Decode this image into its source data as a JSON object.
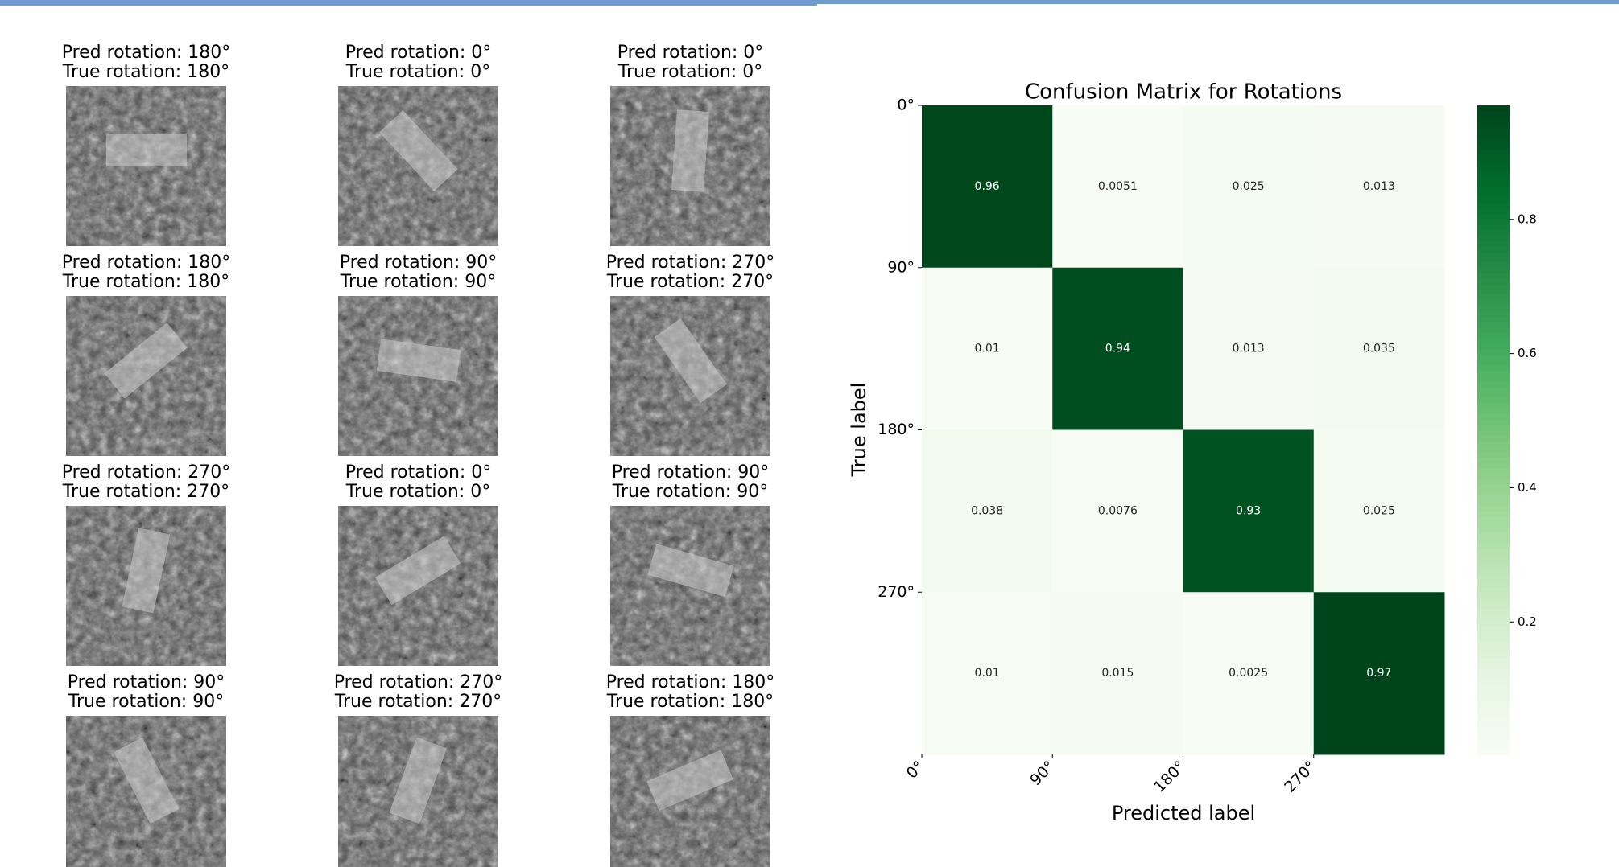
{
  "panels": [
    {
      "pred": "Pred rotation: 180°",
      "true": "True rotation: 180°"
    },
    {
      "pred": "Pred rotation: 0°",
      "true": "True rotation: 0°"
    },
    {
      "pred": "Pred rotation: 0°",
      "true": "True rotation: 0°"
    },
    {
      "pred": "Pred rotation: 180°",
      "true": "True rotation: 180°"
    },
    {
      "pred": "Pred rotation: 90°",
      "true": "True rotation: 90°"
    },
    {
      "pred": "Pred rotation: 270°",
      "true": "True rotation: 270°"
    },
    {
      "pred": "Pred rotation: 270°",
      "true": "True rotation: 270°"
    },
    {
      "pred": "Pred rotation: 0°",
      "true": "True rotation: 0°"
    },
    {
      "pred": "Pred rotation: 90°",
      "true": "True rotation: 90°"
    },
    {
      "pred": "Pred rotation: 90°",
      "true": "True rotation: 90°"
    },
    {
      "pred": "Pred rotation: 270°",
      "true": "True rotation: 270°"
    },
    {
      "pred": "Pred rotation: 180°",
      "true": "True rotation: 180°"
    }
  ],
  "chart_data": {
    "type": "heatmap",
    "title": "Confusion Matrix for Rotations",
    "x_label": "Predicted label",
    "y_label": "True label",
    "x_categories": [
      "0°",
      "90°",
      "180°",
      "270°"
    ],
    "y_categories": [
      "0°",
      "90°",
      "180°",
      "270°"
    ],
    "values": [
      [
        0.96,
        0.0051,
        0.025,
        0.013
      ],
      [
        0.01,
        0.94,
        0.013,
        0.035
      ],
      [
        0.038,
        0.0076,
        0.93,
        0.025
      ],
      [
        0.01,
        0.015,
        0.0025,
        0.97
      ]
    ],
    "colormap": "Greens",
    "zlim": [
      0.0025,
      0.97
    ],
    "zticks": [
      0.2,
      0.4,
      0.6,
      0.8
    ]
  }
}
